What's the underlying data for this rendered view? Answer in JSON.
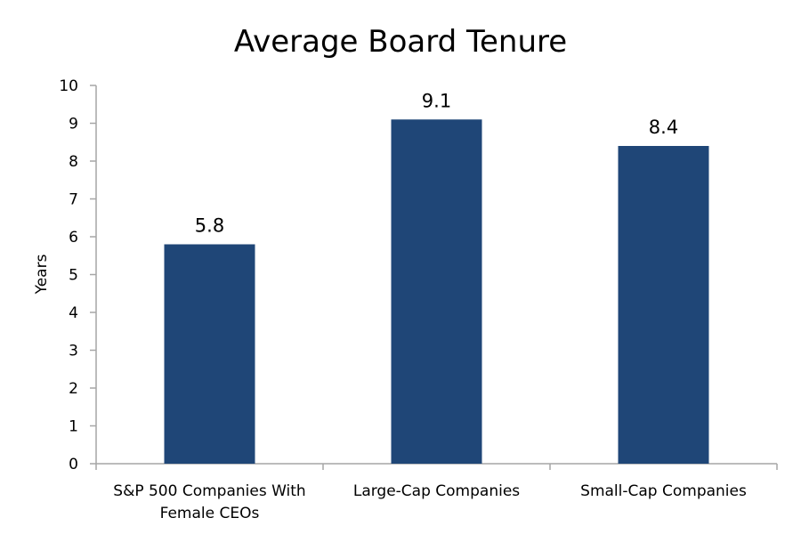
{
  "chart_data": {
    "type": "bar",
    "title": "Average Board Tenure",
    "ylabel": "Years",
    "xlabel": "",
    "ylim": [
      0,
      10
    ],
    "yticks": [
      0,
      1,
      2,
      3,
      4,
      5,
      6,
      7,
      8,
      9,
      10
    ],
    "grid": false,
    "legend": "none",
    "bar_color": "#1f4677",
    "categories": [
      [
        "S&P 500 Companies With",
        "Female CEOs"
      ],
      [
        "Large-Cap Companies"
      ],
      [
        "Small-Cap Companies"
      ]
    ],
    "values": [
      5.8,
      9.1,
      8.4
    ],
    "data_labels": [
      "5.8",
      "9.1",
      "8.4"
    ]
  }
}
